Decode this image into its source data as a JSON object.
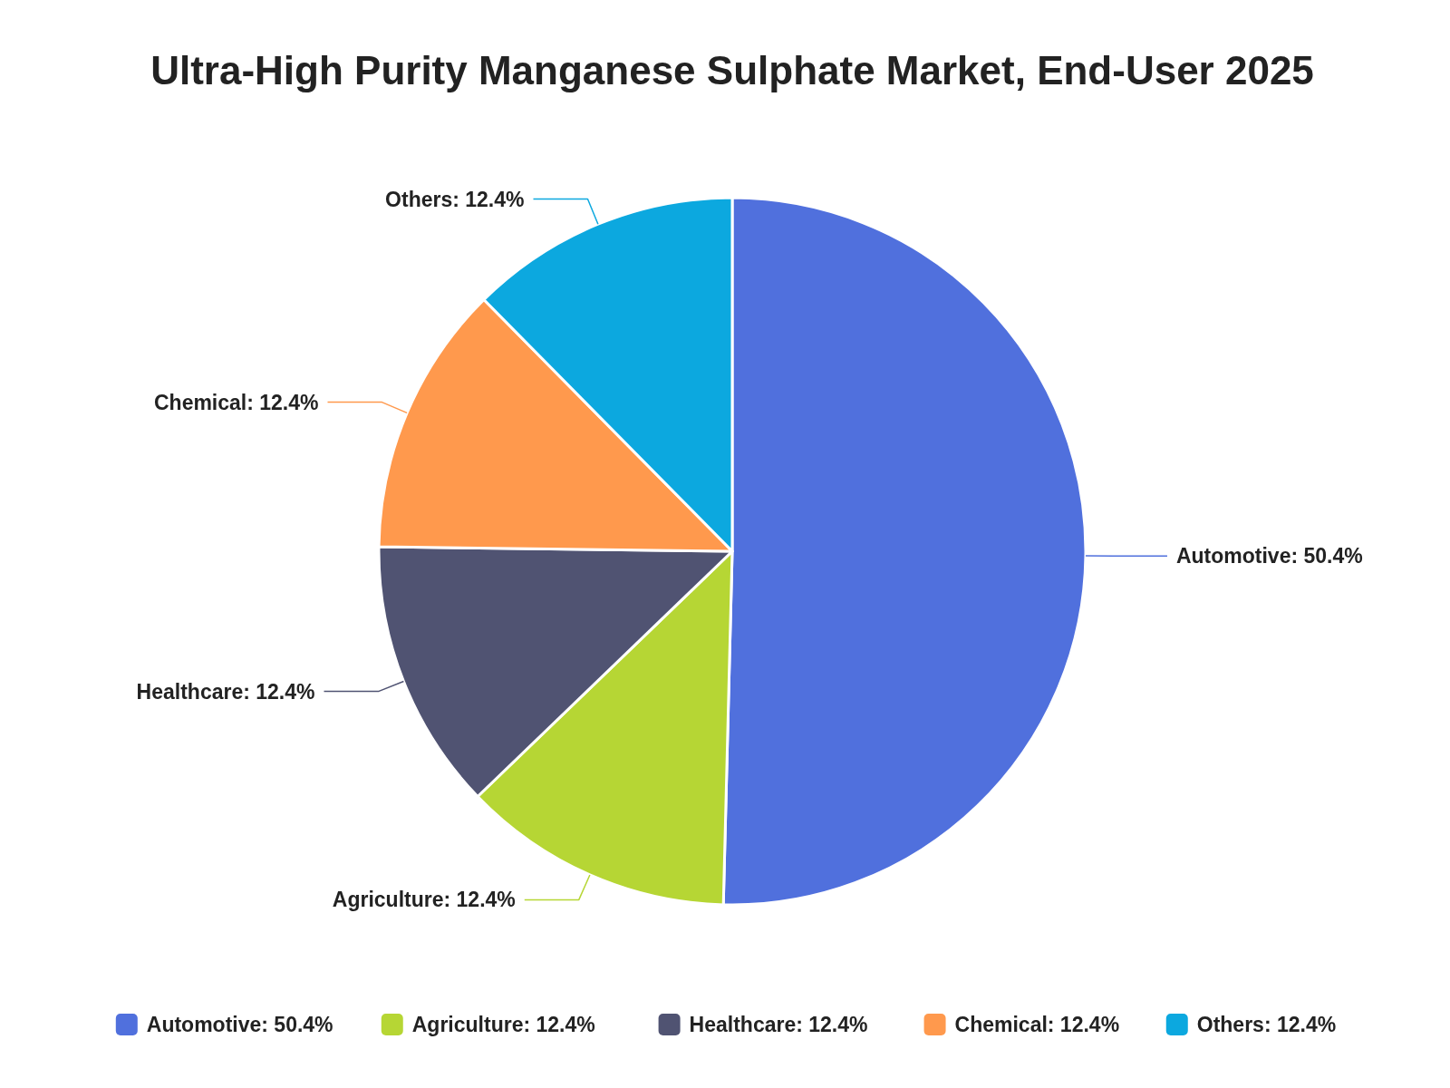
{
  "chart_data": {
    "type": "pie",
    "title": "Ultra-High Purity Manganese Sulphate Market, End-User 2025",
    "categories": [
      "Automotive",
      "Agriculture",
      "Healthcare",
      "Chemical",
      "Others"
    ],
    "values": [
      50.4,
      12.4,
      12.4,
      12.4,
      12.4
    ],
    "value_labels": [
      "50.4%",
      "12.4%",
      "12.4%",
      "12.4%",
      "12.4%"
    ],
    "colors": [
      "#5070dd",
      "#b6d634",
      "#505372",
      "#ff994d",
      "#0ca8df"
    ],
    "data_labels": true,
    "legend": "bottom"
  }
}
